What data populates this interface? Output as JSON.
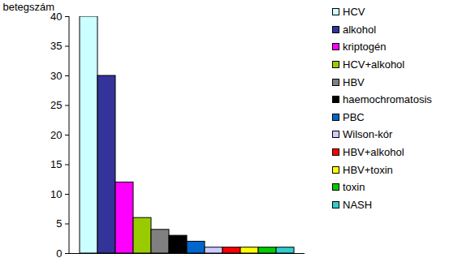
{
  "chart_data": {
    "type": "bar",
    "categories": [
      null
    ],
    "series": [
      {
        "name": "HCV",
        "color": "#ccffff",
        "values": [
          40
        ]
      },
      {
        "name": "alkohol",
        "color": "#333399",
        "values": [
          30
        ]
      },
      {
        "name": "kriptogén",
        "color": "#ff00ff",
        "values": [
          12
        ]
      },
      {
        "name": "HCV+alkohol",
        "color": "#99cc00",
        "values": [
          6
        ]
      },
      {
        "name": "HBV",
        "color": "#808080",
        "values": [
          4
        ]
      },
      {
        "name": "haemochromatosis",
        "color": "#000000",
        "values": [
          3
        ]
      },
      {
        "name": "PBC",
        "color": "#0066cc",
        "values": [
          2
        ]
      },
      {
        "name": "Wilson-kór",
        "color": "#ccccff",
        "values": [
          1
        ]
      },
      {
        "name": "HBV+alkohol",
        "color": "#ff0000",
        "values": [
          1
        ]
      },
      {
        "name": "HBV+toxin",
        "color": "#ffff00",
        "values": [
          1
        ]
      },
      {
        "name": "toxin",
        "color": "#00cc00",
        "values": [
          1
        ]
      },
      {
        "name": "NASH",
        "color": "#33cccc",
        "values": [
          1
        ]
      }
    ],
    "ylabel": "betegszám",
    "ylim": [
      0,
      40
    ],
    "yticks": [
      0,
      5,
      10,
      15,
      20,
      25,
      30,
      35,
      40
    ],
    "grid": false,
    "legend": "right"
  }
}
